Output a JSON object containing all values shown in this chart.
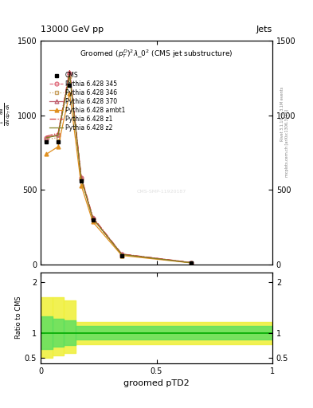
{
  "title_top": "13000 GeV pp",
  "title_right": "Jets",
  "plot_title": "Groomed $(p_T^D)^2\\lambda\\_0^2$ (CMS jet substructure)",
  "xlabel": "groomed pTD2",
  "ylabel_ratio": "Ratio to CMS",
  "rivet_label": "Rivet 3.1.10, ≥ 3.1M events",
  "arxiv_label": "mcplots.cern.ch [arXiv:1306.3436]",
  "watermark": "CMS-SMP-11920187",
  "cms_x": [
    0.025,
    0.075,
    0.125,
    0.175,
    0.225,
    0.35,
    0.65
  ],
  "cms_y": [
    820,
    820,
    1200,
    560,
    300,
    60,
    10
  ],
  "cms_color": "#000000",
  "p345_x": [
    0.025,
    0.075,
    0.125,
    0.175,
    0.225,
    0.35,
    0.65
  ],
  "p345_y": [
    850,
    870,
    1280,
    580,
    310,
    68,
    12
  ],
  "p345_color": "#e07080",
  "p345_linestyle": "--",
  "p345_marker": "o",
  "p346_x": [
    0.025,
    0.075,
    0.125,
    0.175,
    0.225,
    0.35,
    0.65
  ],
  "p346_y": [
    840,
    850,
    1260,
    570,
    305,
    65,
    11
  ],
  "p346_color": "#c8a060",
  "p346_linestyle": ":",
  "p346_marker": "s",
  "p370_x": [
    0.025,
    0.075,
    0.125,
    0.175,
    0.225,
    0.35,
    0.65
  ],
  "p370_y": [
    850,
    870,
    1285,
    582,
    312,
    69,
    12
  ],
  "p370_color": "#c06070",
  "p370_linestyle": "-",
  "p370_marker": "^",
  "pambt1_x": [
    0.025,
    0.075,
    0.125,
    0.175,
    0.225,
    0.35,
    0.65
  ],
  "pambt1_y": [
    740,
    790,
    1150,
    530,
    285,
    60,
    10
  ],
  "pambt1_color": "#e09020",
  "pambt1_linestyle": "-",
  "pambt1_marker": "^",
  "pz1_x": [
    0.025,
    0.075,
    0.125,
    0.175,
    0.225,
    0.35,
    0.65
  ],
  "pz1_y": [
    860,
    880,
    1300,
    588,
    318,
    70,
    13
  ],
  "pz1_color": "#d04040",
  "pz1_linestyle": "-.",
  "pz2_x": [
    0.025,
    0.075,
    0.125,
    0.175,
    0.225,
    0.35,
    0.65
  ],
  "pz2_y": [
    850,
    865,
    1270,
    575,
    308,
    67,
    11
  ],
  "pz2_color": "#808020",
  "pz2_linestyle": "-",
  "ylim_main": [
    0,
    1500
  ],
  "yticks_main": [
    0,
    500,
    1000,
    1500
  ],
  "ylim_ratio": [
    0.4,
    2.2
  ],
  "ratio_yticks": [
    0.5,
    1.0,
    2.0
  ]
}
